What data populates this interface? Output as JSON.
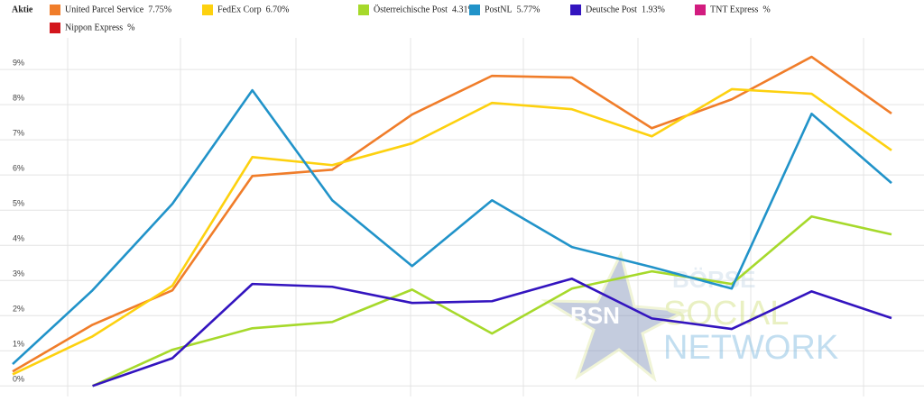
{
  "chart_data": {
    "type": "line",
    "legend_title": "Aktie",
    "categories": [
      null,
      null,
      null,
      null,
      null,
      null,
      null,
      null,
      null,
      null,
      null,
      null
    ],
    "series": [
      {
        "name": "United Parcel Service",
        "legend_label": "7.75%",
        "color": "#f07d2a",
        "values": [
          0.41,
          1.74,
          2.72,
          5.97,
          6.15,
          7.72,
          8.82,
          8.77,
          7.33,
          8.15,
          9.36,
          7.75
        ]
      },
      {
        "name": "FedEx Corp",
        "legend_label": "6.70%",
        "color": "#fdd10f",
        "values": [
          0.33,
          1.41,
          2.85,
          6.51,
          6.28,
          6.9,
          8.05,
          7.87,
          7.1,
          8.44,
          8.31,
          6.7
        ]
      },
      {
        "name": "Österreichische Post",
        "legend_label": "4.31%",
        "color": "#a6d92b",
        "values": [
          null,
          0.0,
          1.03,
          1.64,
          1.82,
          2.74,
          1.49,
          2.77,
          3.26,
          2.9,
          4.82,
          4.31
        ]
      },
      {
        "name": "PostNL",
        "legend_label": "5.77%",
        "color": "#2193c9",
        "values": [
          0.62,
          2.72,
          5.18,
          8.41,
          5.28,
          3.41,
          5.28,
          3.95,
          3.38,
          2.77,
          7.74,
          5.77
        ]
      },
      {
        "name": "Deutsche Post",
        "legend_label": "1.93%",
        "color": "#3314bf",
        "values": [
          null,
          0.0,
          0.79,
          2.9,
          2.82,
          2.36,
          2.41,
          3.05,
          1.92,
          1.62,
          2.69,
          1.93
        ]
      },
      {
        "name": "TNT Express",
        "legend_label": "%",
        "color": "#d21c7f",
        "values": [
          null,
          null,
          null,
          null,
          null,
          null,
          null,
          null,
          null,
          null,
          null,
          null
        ]
      },
      {
        "name": "Nippon Express",
        "legend_label": "%",
        "color": "#d3161c",
        "values": [
          null,
          null,
          null,
          null,
          null,
          null,
          null,
          null,
          null,
          null,
          null,
          null
        ]
      }
    ],
    "ylim": [
      -0.3,
      9.9
    ],
    "yticks": [
      {
        "value": 0,
        "label": "0%"
      },
      {
        "value": 1,
        "label": "1%"
      },
      {
        "value": 2,
        "label": "2%"
      },
      {
        "value": 3,
        "label": "3%"
      },
      {
        "value": 4,
        "label": "4%"
      },
      {
        "value": 5,
        "label": "5%"
      },
      {
        "value": 6,
        "label": "6%"
      },
      {
        "value": 7,
        "label": "7%"
      },
      {
        "value": 8,
        "label": "8%"
      },
      {
        "value": 9,
        "label": "9%"
      }
    ],
    "grid": true,
    "watermark": [
      "BSN",
      "BÖRSE",
      "SOCIAL",
      "NETWORK"
    ]
  }
}
